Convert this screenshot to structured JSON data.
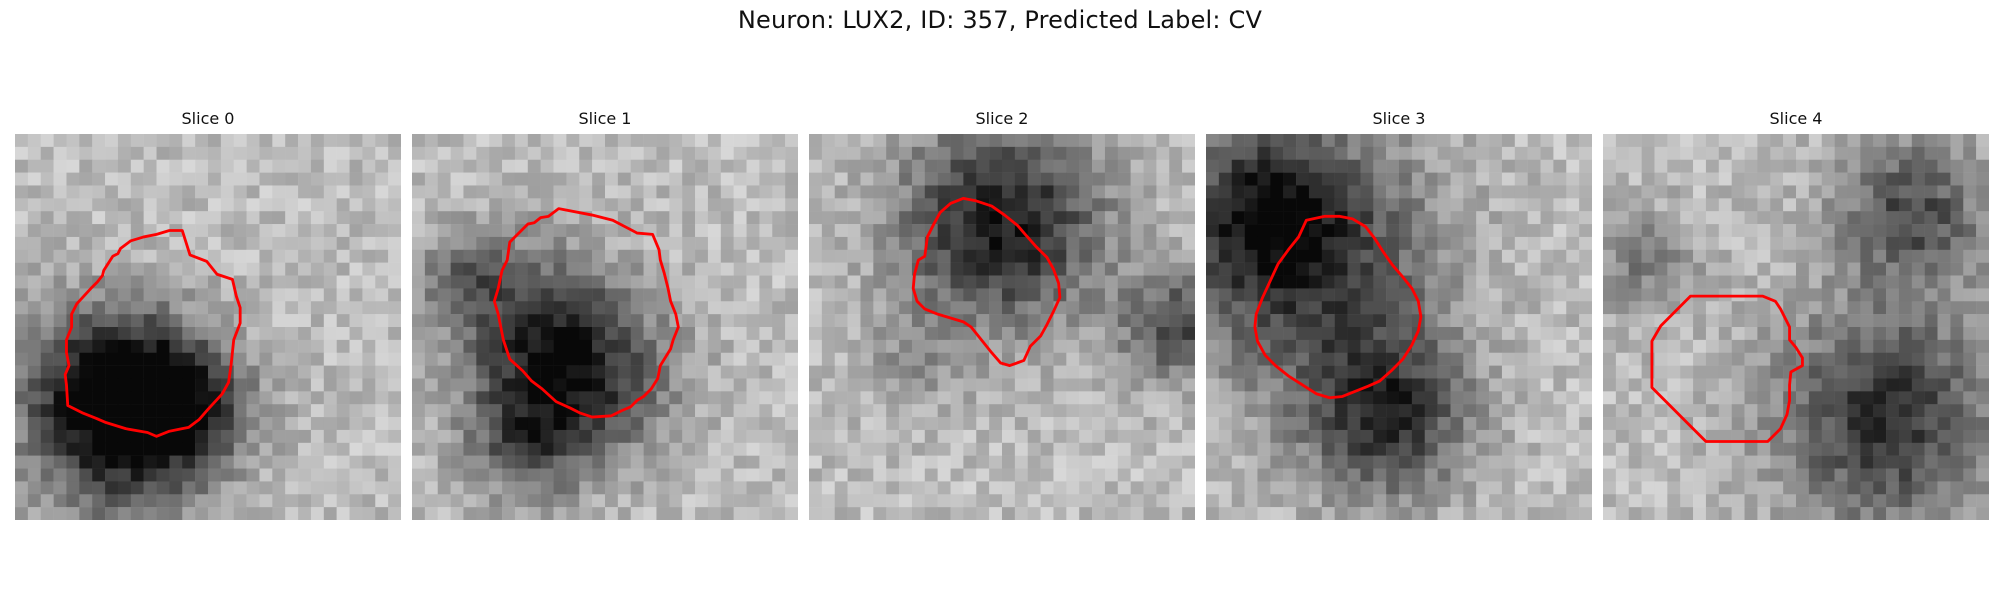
{
  "figure": {
    "title": "Neuron: LUX2, ID: 357, Predicted Label: CV"
  },
  "panels": [
    {
      "title": "Slice 0"
    },
    {
      "title": "Slice 1"
    },
    {
      "title": "Slice 2"
    },
    {
      "title": "Slice 3"
    },
    {
      "title": "Slice 4"
    }
  ],
  "colors": {
    "contour": "#ff0000",
    "colormap": "grayscale"
  }
}
